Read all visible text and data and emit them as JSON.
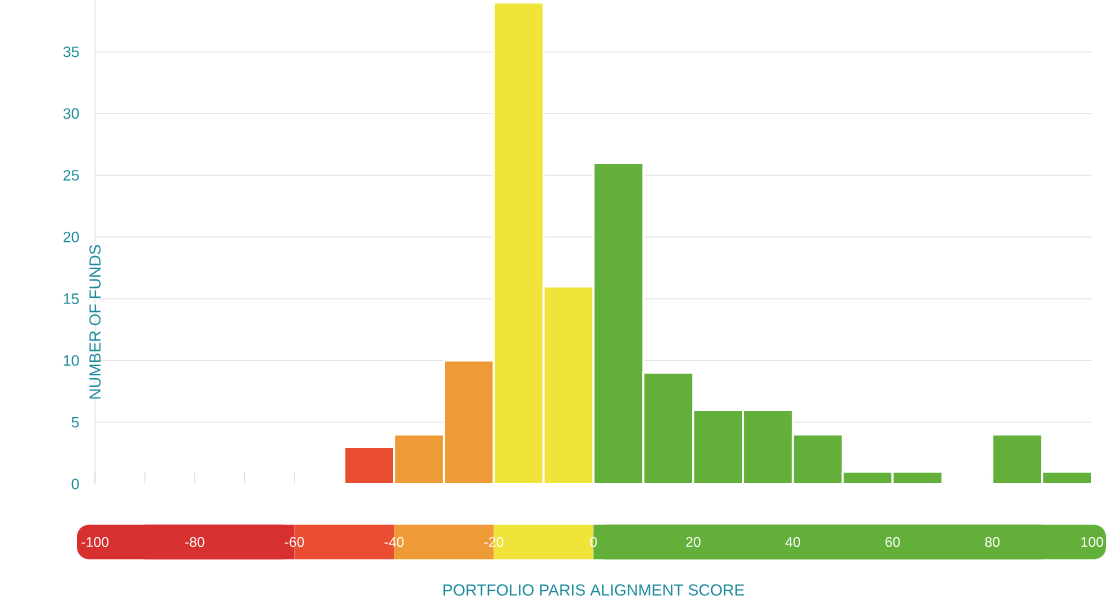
{
  "chart_data": {
    "type": "histogram",
    "xlabel": "PORTFOLIO PARIS ALIGNMENT SCORE",
    "ylabel": "NUMBER OF FUNDS",
    "bins": [
      -100,
      -90,
      -80,
      -70,
      -60,
      -50,
      -40,
      -30,
      -20,
      -10,
      0,
      10,
      20,
      30,
      40,
      50,
      60,
      70,
      80,
      90,
      100
    ],
    "values": [
      0,
      0,
      0,
      0,
      0,
      3,
      4,
      10,
      39,
      16,
      26,
      9,
      6,
      6,
      4,
      1,
      1,
      0,
      4,
      1
    ],
    "colors": [
      "#d7302f",
      "#d7302f",
      "#d7302f",
      "#d7302f",
      "#e94e32",
      "#e94e32",
      "#ee9a36",
      "#ee9a36",
      "#f0e43a",
      "#f0e43a",
      "#62b03a",
      "#62b03a",
      "#62b03a",
      "#62b03a",
      "#62b03a",
      "#62b03a",
      "#62b03a",
      "#62b03a",
      "#62b03a",
      "#62b03a"
    ],
    "xlim": [
      -100,
      100
    ],
    "ylim": [
      0,
      39.2
    ],
    "xticks": [
      -100,
      -80,
      -60,
      -40,
      -20,
      0,
      20,
      40,
      60,
      80,
      100
    ],
    "yticks": [
      0,
      5,
      10,
      15,
      20,
      25,
      30,
      35
    ],
    "grid": "y"
  }
}
